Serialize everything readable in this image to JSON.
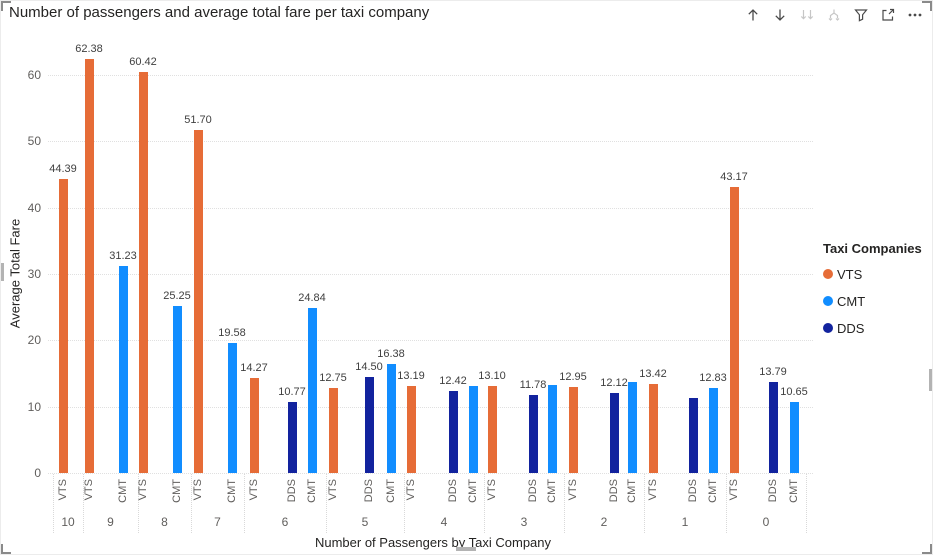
{
  "title": "Number of passengers and average total fare per taxi company",
  "toolbar": {
    "icons": [
      {
        "name": "drill-up-icon",
        "label": "Drill up",
        "disabled": false
      },
      {
        "name": "drill-down-icon",
        "label": "Drill down",
        "disabled": false
      },
      {
        "name": "go-to-next-level-icon",
        "label": "Go to the next level in the hierarchy",
        "disabled": true
      },
      {
        "name": "expand-all-icon",
        "label": "Expand all down one level in the hierarchy",
        "disabled": true
      },
      {
        "name": "filter-icon",
        "label": "Filters",
        "disabled": false
      },
      {
        "name": "focus-mode-icon",
        "label": "Focus mode",
        "disabled": false
      },
      {
        "name": "more-options-icon",
        "label": "More options",
        "disabled": false
      }
    ]
  },
  "chart_data": {
    "type": "bar",
    "title": "Number of passengers and average total fare per taxi company",
    "xlabel": "Number of Passengers by Taxi Company",
    "ylabel": "Average Total Fare",
    "y_ticks": [
      0,
      10,
      20,
      30,
      40,
      50,
      60
    ],
    "ylim": [
      0,
      65
    ],
    "grid": "horizontal-dotted",
    "legend_position": "right",
    "legend_title": "Taxi Companies",
    "series_colors": {
      "VTS": "#E66C37",
      "CMT": "#118DFF",
      "DDS": "#12239E"
    },
    "legend_entries": [
      {
        "label": "VTS",
        "color": "#E66C37"
      },
      {
        "label": "CMT",
        "color": "#118DFF"
      },
      {
        "label": "DDS",
        "color": "#12239E"
      }
    ],
    "groups": [
      {
        "category": "10",
        "bars": [
          {
            "company": "VTS",
            "value": 44.39,
            "label": "44.39"
          }
        ]
      },
      {
        "category": "9",
        "bars": [
          {
            "company": "VTS",
            "value": 62.38,
            "label": "62.38"
          },
          {
            "company": "CMT",
            "value": 31.23,
            "label": "31.23"
          }
        ]
      },
      {
        "category": "8",
        "bars": [
          {
            "company": "VTS",
            "value": 60.42,
            "label": "60.42"
          },
          {
            "company": "CMT",
            "value": 25.25,
            "label": "25.25"
          }
        ]
      },
      {
        "category": "7",
        "bars": [
          {
            "company": "VTS",
            "value": 51.7,
            "label": "51.70"
          },
          {
            "company": "CMT",
            "value": 19.58,
            "label": "19.58"
          }
        ]
      },
      {
        "category": "6",
        "bars": [
          {
            "company": "VTS",
            "value": 14.27,
            "label": "14.27"
          },
          {
            "company": "DDS",
            "value": 10.77,
            "label": "10.77"
          },
          {
            "company": "CMT",
            "value": 24.84,
            "label": "24.84"
          }
        ]
      },
      {
        "category": "5",
        "bars": [
          {
            "company": "VTS",
            "value": 12.75,
            "label": "12.75"
          },
          {
            "company": "DDS",
            "value": 14.5,
            "label": "14.50"
          },
          {
            "company": "CMT",
            "value": 16.38,
            "label": "16.38"
          }
        ]
      },
      {
        "category": "4",
        "bars": [
          {
            "company": "VTS",
            "value": 13.19,
            "label": "13.19"
          },
          {
            "company": "DDS",
            "value": 12.42,
            "label": "12.42"
          },
          {
            "company": "CMT",
            "value": 13.1,
            "label": ""
          }
        ]
      },
      {
        "category": "3",
        "bars": [
          {
            "company": "VTS",
            "value": 13.1,
            "label": "13.10"
          },
          {
            "company": "DDS",
            "value": 11.78,
            "label": "11.78"
          },
          {
            "company": "CMT",
            "value": 13.2,
            "label": ""
          }
        ]
      },
      {
        "category": "2",
        "bars": [
          {
            "company": "VTS",
            "value": 12.95,
            "label": "12.95"
          },
          {
            "company": "DDS",
            "value": 12.12,
            "label": "12.12"
          },
          {
            "company": "CMT",
            "value": 13.7,
            "label": ""
          }
        ]
      },
      {
        "category": "1",
        "bars": [
          {
            "company": "VTS",
            "value": 13.42,
            "label": "13.42"
          },
          {
            "company": "DDS",
            "value": 11.3,
            "label": ""
          },
          {
            "company": "CMT",
            "value": 12.83,
            "label": "12.83"
          }
        ]
      },
      {
        "category": "0",
        "bars": [
          {
            "company": "VTS",
            "value": 43.17,
            "label": "43.17"
          },
          {
            "company": "DDS",
            "value": 13.79,
            "label": "13.79"
          },
          {
            "company": "CMT",
            "value": 10.65,
            "label": "10.65"
          }
        ]
      }
    ]
  }
}
